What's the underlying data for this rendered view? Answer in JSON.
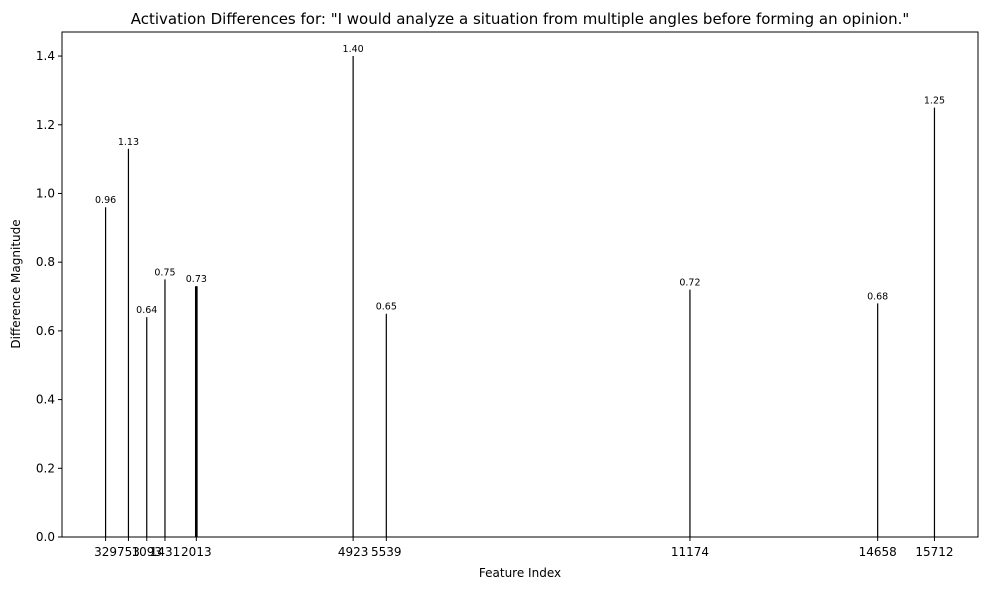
{
  "chart_data": {
    "type": "bar",
    "title": "Activation Differences for: \"I would analyze a situation from multiple angles before forming an opinion.\"",
    "xlabel": "Feature Index",
    "ylabel": "Difference Magnitude",
    "x_ticks": [
      "329",
      "753",
      "1093",
      "1431",
      "2013",
      "4923",
      "5539",
      "11174",
      "14658",
      "15712"
    ],
    "y_ticks": [
      "0.0",
      "0.2",
      "0.4",
      "0.6",
      "0.8",
      "1.0",
      "1.2",
      "1.4"
    ],
    "ylim": [
      0,
      1.47
    ],
    "xlim": [
      -480,
      16520
    ],
    "grid": false,
    "bar_color": "#000000",
    "series": [
      {
        "x": [
          329,
          753,
          1093,
          1431,
          1999,
          2013,
          2026,
          4923,
          5539,
          11174,
          14658,
          15712
        ],
        "values": [
          0.96,
          1.13,
          0.64,
          0.75,
          0.73,
          0.73,
          0.73,
          1.4,
          0.65,
          0.72,
          0.68,
          1.25
        ],
        "labels": [
          "0.96",
          "1.13",
          "0.64",
          "0.75",
          "",
          "0.73",
          "",
          "1.40",
          "0.65",
          "0.72",
          "0.68",
          "1.25"
        ]
      }
    ]
  }
}
